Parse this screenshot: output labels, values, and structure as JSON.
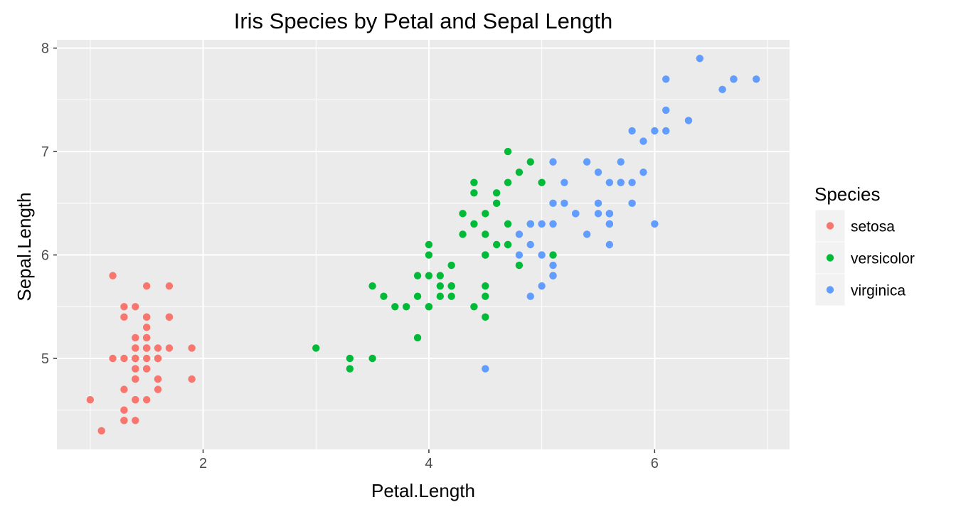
{
  "chart_data": {
    "type": "scatter",
    "title": "Iris Species by Petal and Sepal Length",
    "xlabel": "Petal.Length",
    "ylabel": "Sepal.Length",
    "xlim": [
      0.705,
      7.195
    ],
    "ylim": [
      4.12,
      8.08
    ],
    "x_ticks": [
      2,
      4,
      6
    ],
    "y_ticks": [
      5,
      6,
      7,
      8
    ],
    "grid": true,
    "legend": {
      "title": "Species",
      "position": "right"
    },
    "series": [
      {
        "name": "setosa",
        "color": "#F8766D",
        "points": [
          [
            1.4,
            5.1
          ],
          [
            1.4,
            4.9
          ],
          [
            1.3,
            4.7
          ],
          [
            1.5,
            4.6
          ],
          [
            1.4,
            5.0
          ],
          [
            1.7,
            5.4
          ],
          [
            1.4,
            4.6
          ],
          [
            1.5,
            5.0
          ],
          [
            1.4,
            4.4
          ],
          [
            1.5,
            4.9
          ],
          [
            1.5,
            5.4
          ],
          [
            1.6,
            4.8
          ],
          [
            1.4,
            4.8
          ],
          [
            1.1,
            4.3
          ],
          [
            1.2,
            5.8
          ],
          [
            1.5,
            5.7
          ],
          [
            1.3,
            5.4
          ],
          [
            1.4,
            5.1
          ],
          [
            1.7,
            5.7
          ],
          [
            1.5,
            5.1
          ],
          [
            1.7,
            5.4
          ],
          [
            1.5,
            5.1
          ],
          [
            1.0,
            4.6
          ],
          [
            1.7,
            5.1
          ],
          [
            1.9,
            4.8
          ],
          [
            1.6,
            5.0
          ],
          [
            1.6,
            5.0
          ],
          [
            1.5,
            5.2
          ],
          [
            1.4,
            5.2
          ],
          [
            1.6,
            4.7
          ],
          [
            1.6,
            4.8
          ],
          [
            1.5,
            5.4
          ],
          [
            1.5,
            5.2
          ],
          [
            1.4,
            5.5
          ],
          [
            1.5,
            4.9
          ],
          [
            1.2,
            5.0
          ],
          [
            1.3,
            5.5
          ],
          [
            1.4,
            4.9
          ],
          [
            1.3,
            4.4
          ],
          [
            1.5,
            5.1
          ],
          [
            1.3,
            5.0
          ],
          [
            1.3,
            4.5
          ],
          [
            1.3,
            4.4
          ],
          [
            1.6,
            5.0
          ],
          [
            1.9,
            5.1
          ],
          [
            1.4,
            4.8
          ],
          [
            1.6,
            5.1
          ],
          [
            1.4,
            4.6
          ],
          [
            1.5,
            5.3
          ],
          [
            1.4,
            5.0
          ]
        ]
      },
      {
        "name": "versicolor",
        "color": "#00BA38",
        "points": [
          [
            4.7,
            7.0
          ],
          [
            4.5,
            6.4
          ],
          [
            4.9,
            6.9
          ],
          [
            4.0,
            5.5
          ],
          [
            4.6,
            6.5
          ],
          [
            4.5,
            5.7
          ],
          [
            4.7,
            6.3
          ],
          [
            3.3,
            4.9
          ],
          [
            4.6,
            6.6
          ],
          [
            3.9,
            5.2
          ],
          [
            3.5,
            5.0
          ],
          [
            4.2,
            5.9
          ],
          [
            4.0,
            6.0
          ],
          [
            4.7,
            6.1
          ],
          [
            3.6,
            5.6
          ],
          [
            4.4,
            6.7
          ],
          [
            4.5,
            5.6
          ],
          [
            4.1,
            5.8
          ],
          [
            4.5,
            6.2
          ],
          [
            3.9,
            5.6
          ],
          [
            4.8,
            5.9
          ],
          [
            4.0,
            6.1
          ],
          [
            4.9,
            6.3
          ],
          [
            4.7,
            6.1
          ],
          [
            4.3,
            6.4
          ],
          [
            4.4,
            6.6
          ],
          [
            4.8,
            6.8
          ],
          [
            5.0,
            6.7
          ],
          [
            4.5,
            6.0
          ],
          [
            3.5,
            5.7
          ],
          [
            3.8,
            5.5
          ],
          [
            3.7,
            5.5
          ],
          [
            3.9,
            5.8
          ],
          [
            5.1,
            6.0
          ],
          [
            4.5,
            5.4
          ],
          [
            4.5,
            6.0
          ],
          [
            4.7,
            6.7
          ],
          [
            4.4,
            6.3
          ],
          [
            4.1,
            5.6
          ],
          [
            4.0,
            5.5
          ],
          [
            4.4,
            5.5
          ],
          [
            4.6,
            6.1
          ],
          [
            4.0,
            5.8
          ],
          [
            3.3,
            5.0
          ],
          [
            4.2,
            5.6
          ],
          [
            4.2,
            5.7
          ],
          [
            4.2,
            5.7
          ],
          [
            4.3,
            6.2
          ],
          [
            3.0,
            5.1
          ],
          [
            4.1,
            5.7
          ]
        ]
      },
      {
        "name": "virginica",
        "color": "#619CFF",
        "points": [
          [
            6.0,
            6.3
          ],
          [
            5.1,
            5.8
          ],
          [
            5.9,
            7.1
          ],
          [
            5.6,
            6.3
          ],
          [
            5.8,
            6.5
          ],
          [
            6.6,
            7.6
          ],
          [
            4.5,
            4.9
          ],
          [
            6.3,
            7.3
          ],
          [
            5.8,
            6.7
          ],
          [
            6.1,
            7.2
          ],
          [
            5.1,
            6.5
          ],
          [
            5.3,
            6.4
          ],
          [
            5.5,
            6.8
          ],
          [
            5.0,
            5.7
          ],
          [
            5.1,
            5.8
          ],
          [
            5.3,
            6.4
          ],
          [
            5.5,
            6.5
          ],
          [
            6.7,
            7.7
          ],
          [
            6.9,
            7.7
          ],
          [
            5.0,
            6.0
          ],
          [
            5.7,
            6.9
          ],
          [
            4.9,
            5.6
          ],
          [
            6.7,
            7.7
          ],
          [
            4.9,
            6.3
          ],
          [
            5.7,
            6.7
          ],
          [
            6.0,
            7.2
          ],
          [
            4.8,
            6.2
          ],
          [
            4.9,
            6.1
          ],
          [
            5.6,
            6.4
          ],
          [
            5.8,
            7.2
          ],
          [
            6.1,
            7.4
          ],
          [
            6.4,
            7.9
          ],
          [
            5.6,
            6.4
          ],
          [
            5.1,
            6.3
          ],
          [
            5.6,
            6.1
          ],
          [
            6.1,
            7.7
          ],
          [
            5.6,
            6.3
          ],
          [
            5.5,
            6.4
          ],
          [
            4.8,
            6.0
          ],
          [
            5.4,
            6.9
          ],
          [
            5.6,
            6.7
          ],
          [
            5.1,
            6.9
          ],
          [
            5.1,
            5.8
          ],
          [
            5.9,
            6.8
          ],
          [
            5.7,
            6.7
          ],
          [
            5.2,
            6.7
          ],
          [
            5.0,
            6.3
          ],
          [
            5.2,
            6.5
          ],
          [
            5.4,
            6.2
          ],
          [
            5.1,
            5.9
          ]
        ]
      }
    ]
  }
}
